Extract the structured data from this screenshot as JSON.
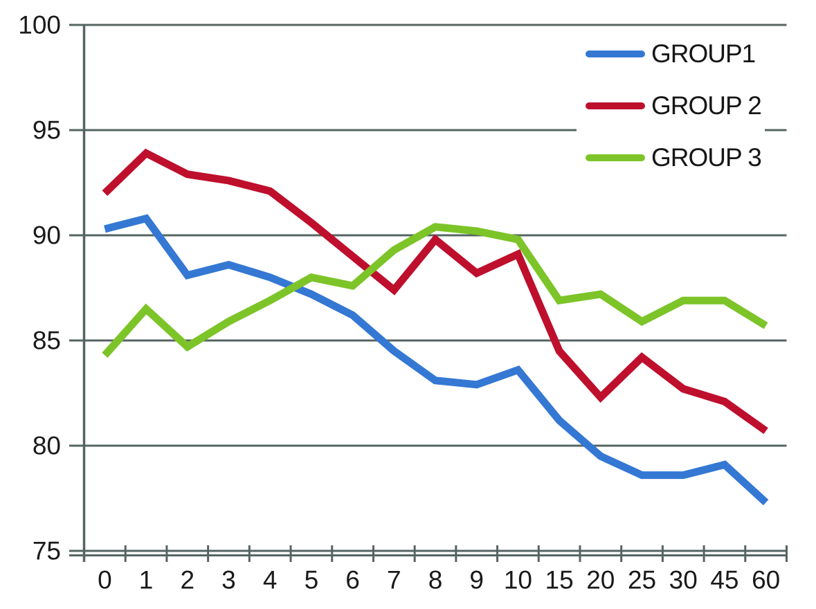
{
  "chart_data": {
    "type": "line",
    "title": "",
    "xlabel": "",
    "ylabel": "",
    "categories": [
      "0",
      "1",
      "2",
      "3",
      "4",
      "5",
      "6",
      "7",
      "8",
      "9",
      "10",
      "15",
      "20",
      "25",
      "30",
      "45",
      "60"
    ],
    "series": [
      {
        "name": "GROUP1",
        "color": "#3478D4",
        "values": [
          90.3,
          90.8,
          88.1,
          88.6,
          88.0,
          87.2,
          86.2,
          84.5,
          83.1,
          82.9,
          83.6,
          81.2,
          79.5,
          78.6,
          78.6,
          79.1,
          77.3
        ]
      },
      {
        "name": "GROUP 2",
        "color": "#BE0F2D",
        "values": [
          92.0,
          93.9,
          92.9,
          92.6,
          92.1,
          90.6,
          89.0,
          87.4,
          89.8,
          88.2,
          89.1,
          84.5,
          82.3,
          84.2,
          82.7,
          82.1,
          80.7
        ]
      },
      {
        "name": "GROUP 3",
        "color": "#7CC428",
        "values": [
          84.3,
          86.5,
          84.7,
          85.9,
          86.9,
          88.0,
          87.6,
          89.3,
          90.4,
          90.2,
          89.8,
          86.9,
          87.2,
          85.9,
          86.9,
          86.9,
          85.7
        ]
      }
    ],
    "ylim": [
      75,
      100
    ],
    "yticks": [
      "100",
      "95",
      "90",
      "85",
      "80",
      "75"
    ],
    "ytick_values": [
      100,
      95,
      90,
      85,
      80,
      75
    ],
    "grid": true,
    "legend_position": "top-right",
    "colors": {
      "gridline": "#556462",
      "axis": "#556462",
      "tick_text": "#1a1a1a"
    }
  }
}
